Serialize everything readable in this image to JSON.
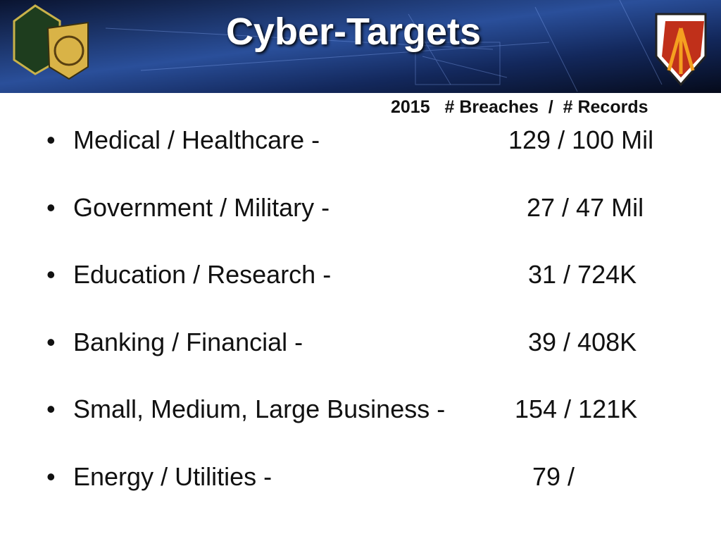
{
  "header": {
    "title": "Cyber-Targets"
  },
  "column_header": {
    "year": "2015",
    "columns": "# Breaches  /  # Records"
  },
  "items": [
    {
      "label": "Medical / Healthcare -",
      "value": "129 / 100 Mil"
    },
    {
      "label": "Government / Military -",
      "value": "27 / 47 Mil"
    },
    {
      "label": "Education / Research -",
      "value": "31 / 724K"
    },
    {
      "label": "Banking / Financial -",
      "value": "39 / 408K"
    },
    {
      "label": "Small, Medium, Large Business -",
      "value": "154 / 121K"
    },
    {
      "label": "Energy / Utilities -",
      "value": "79 /"
    }
  ]
}
